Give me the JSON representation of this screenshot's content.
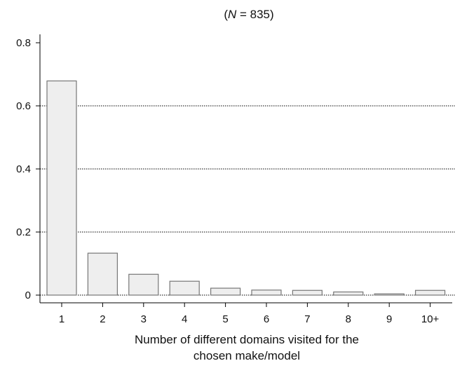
{
  "chart_data": {
    "type": "bar",
    "title": "(N = 835)",
    "title_prefix": "(",
    "title_var": "N",
    "title_suffix": " = 835)",
    "xlabel_line1": "Number of different domains visited for the",
    "xlabel_line2": "chosen make/model",
    "ylabel": "",
    "categories": [
      "1",
      "2",
      "3",
      "4",
      "5",
      "6",
      "7",
      "8",
      "9",
      "10+"
    ],
    "values": [
      0.679,
      0.133,
      0.066,
      0.044,
      0.022,
      0.016,
      0.015,
      0.01,
      0.004,
      0.015
    ],
    "ylim": [
      0,
      0.8
    ],
    "yticks": [
      0,
      0.2,
      0.4,
      0.6,
      0.8
    ],
    "ytick_labels": [
      "0",
      "0.2",
      "0.4",
      "0.6",
      "0.8"
    ],
    "grid": "horizontal dotted at 0, 0.2, 0.4, 0.6",
    "legend": "none",
    "colors": {
      "bar_fill": "#eeeeee",
      "bar_stroke": "#777777",
      "axis": "#000000",
      "grid": "#000000"
    }
  }
}
